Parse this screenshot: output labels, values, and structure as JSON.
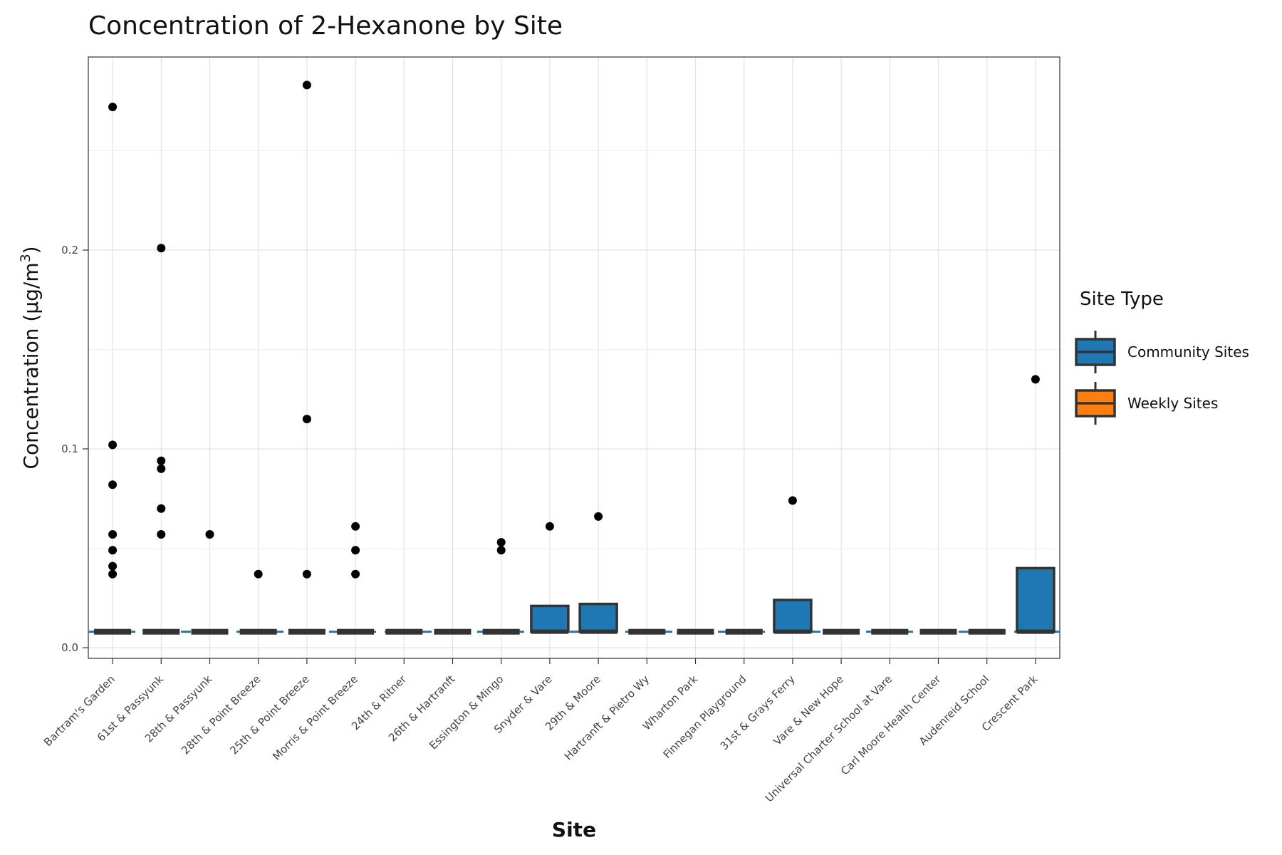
{
  "chart_data": {
    "type": "box",
    "title": "Concentration of 2-Hexanone by Site",
    "xlabel": "Site",
    "ylabel_prefix": "Concentration (µg/m",
    "ylabel_sup": "3",
    "ylabel_suffix": ")",
    "ylim": [
      -0.006,
      0.29
    ],
    "yticks": [
      0.0,
      0.1,
      0.2
    ],
    "ytick_labels": [
      "0.0",
      "0.1",
      "0.2"
    ],
    "grid": true,
    "legend_position": "right",
    "reference_line": {
      "y": 0.008,
      "style": "dashed",
      "color": "#1f77b4"
    },
    "legend": {
      "title": "Site Type",
      "entries": [
        {
          "label": "Community Sites",
          "color": "#1f77b4"
        },
        {
          "label": "Weekly Sites",
          "color": "#ff7f0e"
        }
      ]
    },
    "categories": [
      "Bartram's Garden",
      "61st & Passyunk",
      "28th & Passyunk",
      "28th & Point Breeze",
      "25th & Point Breeze",
      "Morris & Point Breeze",
      "24th & Ritner",
      "26th & Hartranft",
      "Essington & Mingo",
      "Snyder & Vare",
      "29th & Moore",
      "Hartranft & Pietro Wy",
      "Wharton Park",
      "Finnegan Playground",
      "31st & Grays Ferry",
      "Vare & New Hope",
      "Universal Charter School at Vare",
      "Carl Moore Health Center",
      "Audenreid School",
      "Crescent Park"
    ],
    "series": [
      {
        "boxes": [
          {
            "q1": 0.008,
            "median": 0.008,
            "q3": 0.008
          },
          {
            "q1": 0.008,
            "median": 0.008,
            "q3": 0.008
          },
          {
            "q1": 0.008,
            "median": 0.008,
            "q3": 0.008
          },
          {
            "q1": 0.008,
            "median": 0.008,
            "q3": 0.008
          },
          {
            "q1": 0.008,
            "median": 0.008,
            "q3": 0.008
          },
          {
            "q1": 0.008,
            "median": 0.008,
            "q3": 0.008
          },
          {
            "q1": 0.008,
            "median": 0.008,
            "q3": 0.008
          },
          {
            "q1": 0.008,
            "median": 0.008,
            "q3": 0.008
          },
          {
            "q1": 0.008,
            "median": 0.008,
            "q3": 0.008
          },
          {
            "q1": 0.008,
            "median": 0.008,
            "q3": 0.021
          },
          {
            "q1": 0.008,
            "median": 0.008,
            "q3": 0.022
          },
          {
            "q1": 0.008,
            "median": 0.008,
            "q3": 0.008
          },
          {
            "q1": 0.008,
            "median": 0.008,
            "q3": 0.008
          },
          {
            "q1": 0.008,
            "median": 0.008,
            "q3": 0.008
          },
          {
            "q1": 0.008,
            "median": 0.008,
            "q3": 0.024
          },
          {
            "q1": 0.008,
            "median": 0.008,
            "q3": 0.008
          },
          {
            "q1": 0.008,
            "median": 0.008,
            "q3": 0.008
          },
          {
            "q1": 0.008,
            "median": 0.008,
            "q3": 0.008
          },
          {
            "q1": 0.008,
            "median": 0.008,
            "q3": 0.008
          },
          {
            "q1": 0.008,
            "median": 0.008,
            "q3": 0.04
          }
        ],
        "outliers": [
          [
            0.272,
            0.102,
            0.082,
            0.057,
            0.049,
            0.041,
            0.037
          ],
          [
            0.201,
            0.094,
            0.09,
            0.07,
            0.057
          ],
          [
            0.057
          ],
          [
            0.037
          ],
          [
            0.283,
            0.115,
            0.037
          ],
          [
            0.061,
            0.049,
            0.037
          ],
          [],
          [],
          [
            0.053,
            0.049
          ],
          [
            0.061
          ],
          [
            0.066
          ],
          [],
          [],
          [],
          [
            0.074
          ],
          [],
          [],
          [],
          [],
          [
            0.135
          ]
        ]
      }
    ]
  }
}
